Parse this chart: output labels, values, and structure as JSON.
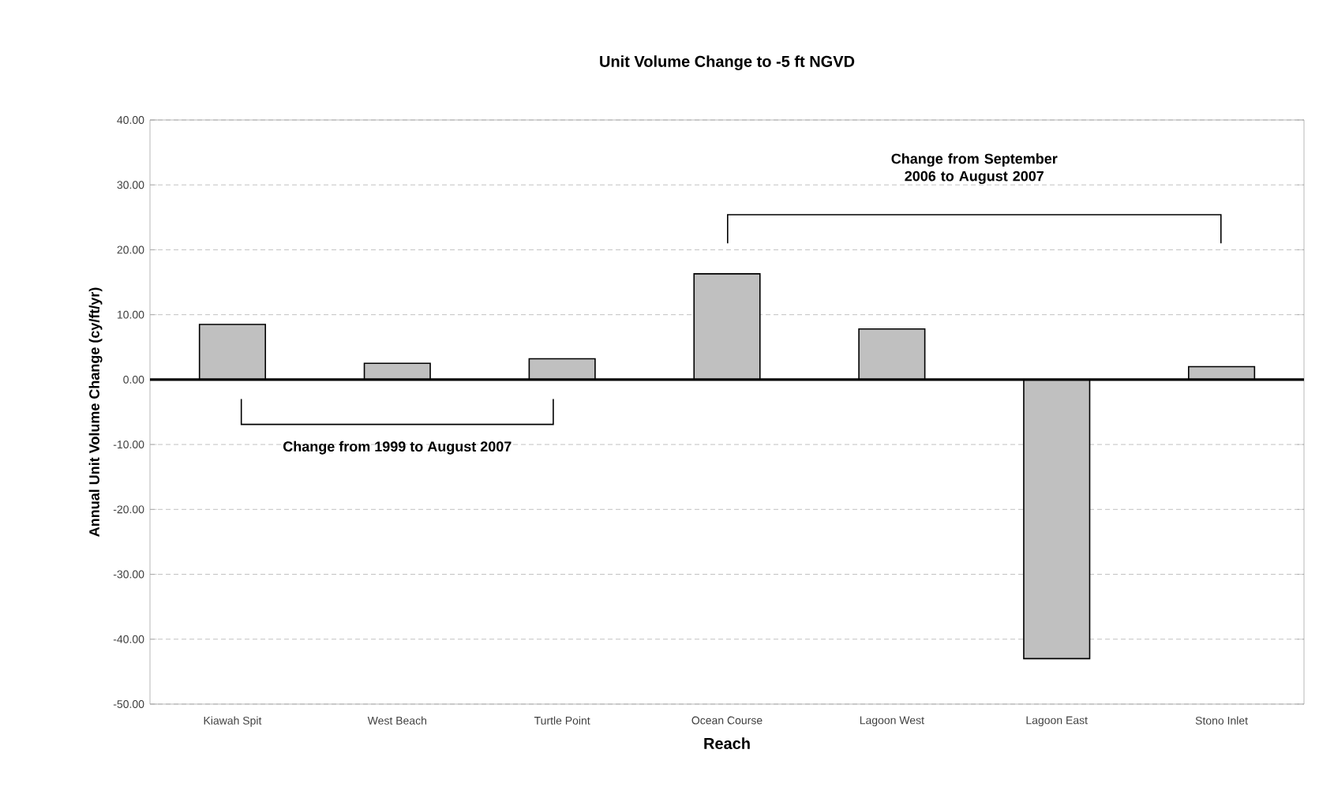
{
  "chart_data": {
    "type": "bar",
    "title": "Unit Volume Change to -5 ft NGVD",
    "xlabel": "Reach",
    "ylabel": "Annual Unit Volume Change (cy/ft/yr)",
    "categories": [
      "Kiawah Spit",
      "West Beach",
      "Turtle Point",
      "Ocean Course",
      "Lagoon West",
      "Lagoon East",
      "Stono Inlet"
    ],
    "values": [
      8.5,
      2.5,
      3.2,
      16.3,
      7.8,
      -43.0,
      2.0
    ],
    "color": "#c0c0c0",
    "ylim": [
      -50,
      40
    ],
    "yticks": [
      {
        "value": -50,
        "label": "-50.00"
      },
      {
        "value": -40,
        "label": "-40.00"
      },
      {
        "value": -30,
        "label": "-30.00"
      },
      {
        "value": -20,
        "label": "-20.00"
      },
      {
        "value": -10,
        "label": "-10.00"
      },
      {
        "value": 0,
        "label": "0.00"
      },
      {
        "value": 10,
        "label": "10.00"
      },
      {
        "value": 20,
        "label": "20.00"
      },
      {
        "value": 30,
        "label": "30.00"
      },
      {
        "value": 40,
        "label": "40.00"
      }
    ],
    "grid": "y",
    "ref_lines": [
      {
        "axis": "y",
        "value": 0,
        "color": "#000000"
      }
    ],
    "annotations": [
      "Change from 1999 to August 2007",
      "Change from September 2006 to August 2007"
    ]
  }
}
